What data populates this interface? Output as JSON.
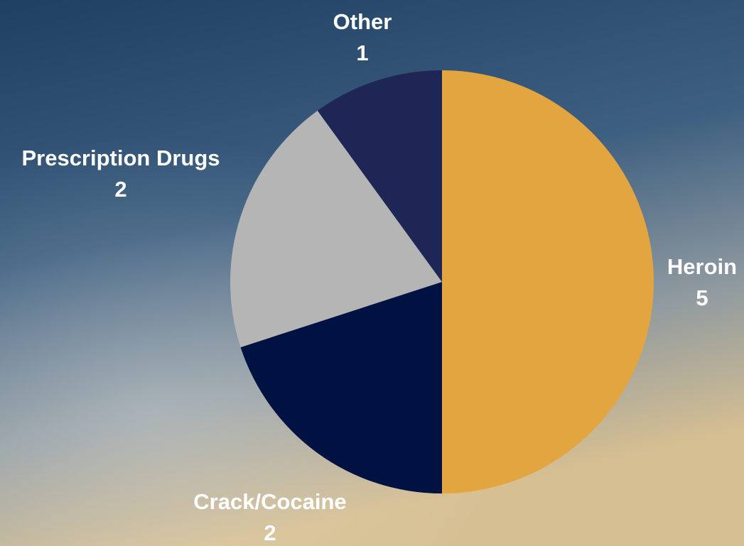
{
  "chart_data": {
    "type": "pie",
    "categories": [
      "Heroin",
      "Crack/Cocaine",
      "Prescription Drugs",
      "Other"
    ],
    "values": [
      5,
      2,
      2,
      1
    ],
    "colors": [
      "#e2a540",
      "#001242",
      "#b5b5b5",
      "#1e2656"
    ]
  }
}
